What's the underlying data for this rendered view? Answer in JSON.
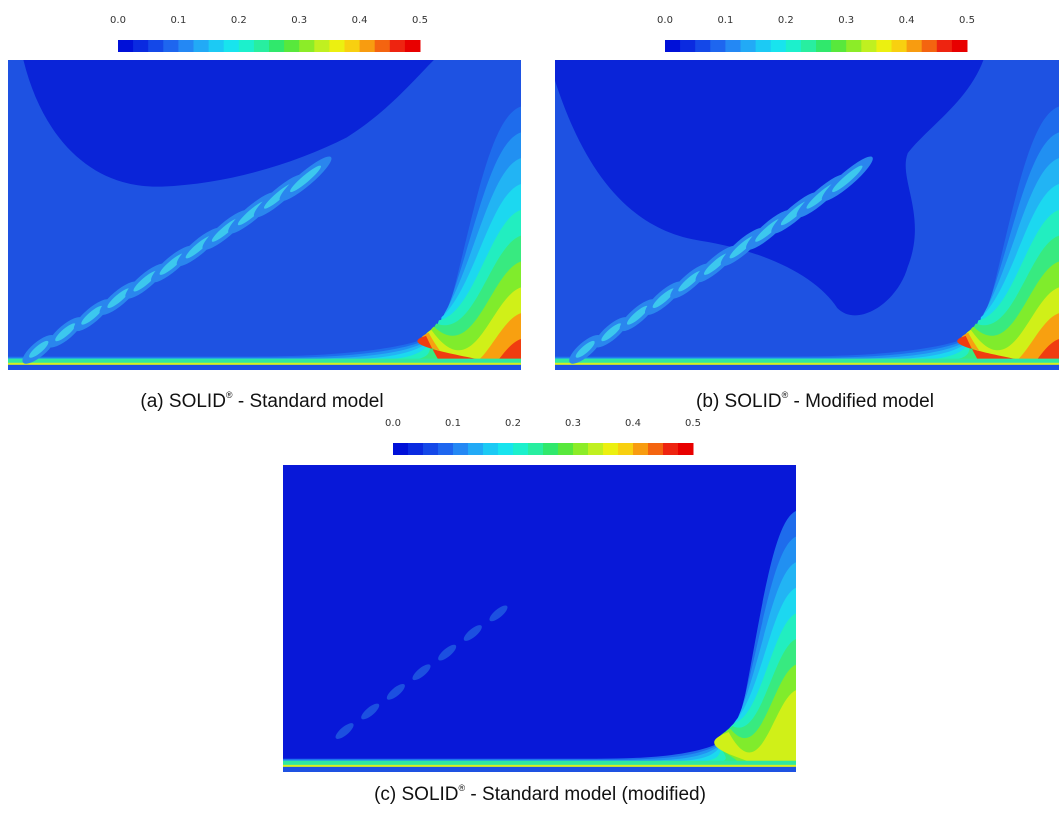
{
  "panels": [
    {
      "colorbar": {
        "ticks": [
          "0.0",
          "0.1",
          "0.2",
          "0.3",
          "0.4",
          "0.5"
        ]
      },
      "caption": {
        "text": "(a) SOLID",
        "sup": "®",
        "rest": " - Standard model"
      }
    },
    {
      "colorbar": {
        "ticks": [
          "0.0",
          "0.1",
          "0.2",
          "0.3",
          "0.4",
          "0.5"
        ]
      },
      "caption": {
        "text": "(b) SOLID",
        "sup": "®",
        "rest": " - Modified model"
      }
    },
    {
      "colorbar": {
        "ticks": [
          "0.0",
          "0.1",
          "0.2",
          "0.3",
          "0.4",
          "0.5"
        ]
      },
      "caption": {
        "text": "(c) SOLID",
        "sup": "®",
        "rest": " - Standard model (modified)"
      }
    }
  ]
}
